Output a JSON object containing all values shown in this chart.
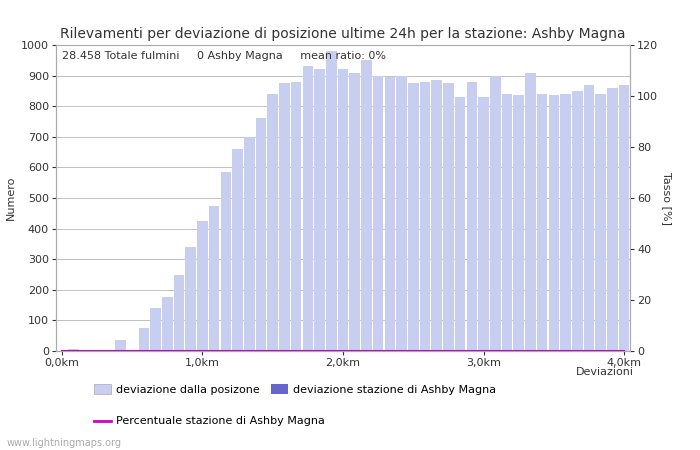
{
  "title": "Rilevamenti per deviazione di posizione ultime 24h per la stazione: Ashby Magna",
  "xlabel": "Deviazioni",
  "ylabel_left": "Numero",
  "ylabel_right": "Tasso [%]",
  "annotation": "28.458 Totale fulmini     0 Ashby Magna     mean ratio: 0%",
  "watermark": "www.lightningmaps.org",
  "bar_color_total": "#c8cef0",
  "bar_color_station": "#6666cc",
  "line_color": "#cc00cc",
  "ylim_left": [
    0,
    1000
  ],
  "ylim_right": [
    0,
    120
  ],
  "yticks_left": [
    0,
    100,
    200,
    300,
    400,
    500,
    600,
    700,
    800,
    900,
    1000
  ],
  "yticks_right": [
    0,
    20,
    40,
    60,
    80,
    100,
    120
  ],
  "xtick_labels": [
    "0,0km",
    "1,0km",
    "2,0km",
    "3,0km",
    "4,0km"
  ],
  "total_bars": [
    0,
    5,
    0,
    2,
    0,
    35,
    0,
    75,
    140,
    175,
    250,
    340,
    425,
    475,
    585,
    660,
    700,
    760,
    840,
    875,
    880,
    930,
    920,
    980,
    920,
    910,
    950,
    900,
    895,
    900,
    875,
    880,
    885,
    875,
    830,
    880,
    830,
    900,
    840,
    835,
    910,
    840,
    835,
    840,
    850,
    870,
    840,
    860,
    870
  ],
  "station_bars": [
    0,
    0,
    0,
    0,
    0,
    0,
    0,
    0,
    0,
    0,
    0,
    0,
    0,
    0,
    0,
    0,
    0,
    0,
    0,
    0,
    0,
    0,
    0,
    0,
    0,
    0,
    0,
    0,
    0,
    0,
    0,
    0,
    0,
    0,
    0,
    0,
    0,
    0,
    0,
    0,
    0,
    0,
    0,
    0,
    0,
    0,
    0,
    0,
    0
  ],
  "ratio_line": [
    0,
    0,
    0,
    0,
    0,
    0,
    0,
    0,
    0,
    0,
    0,
    0,
    0,
    0,
    0,
    0,
    0,
    0,
    0,
    0,
    0,
    0,
    0,
    0,
    0,
    0,
    0,
    0,
    0,
    0,
    0,
    0,
    0,
    0,
    0,
    0,
    0,
    0,
    0,
    0,
    0,
    0,
    0,
    0,
    0,
    0,
    0,
    0,
    0
  ],
  "legend_label_total": "deviazione dalla posizone",
  "legend_label_station": "deviazione stazione di Ashby Magna",
  "legend_label_line": "Percentuale stazione di Ashby Magna",
  "background_color": "#ffffff",
  "grid_color": "#aaaaaa",
  "font_color": "#333333",
  "title_fontsize": 10,
  "axis_fontsize": 8,
  "tick_fontsize": 8,
  "annotation_fontsize": 8
}
